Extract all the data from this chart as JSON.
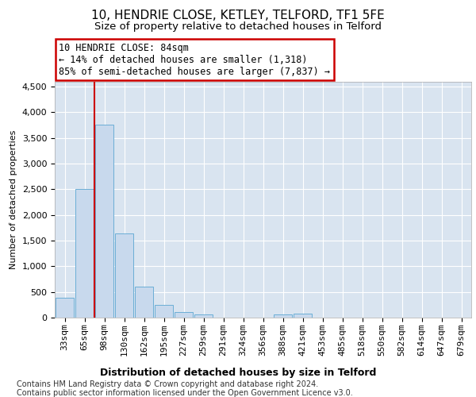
{
  "title1": "10, HENDRIE CLOSE, KETLEY, TELFORD, TF1 5FE",
  "title2": "Size of property relative to detached houses in Telford",
  "xlabel": "Distribution of detached houses by size in Telford",
  "ylabel": "Number of detached properties",
  "categories": [
    "33sqm",
    "65sqm",
    "98sqm",
    "130sqm",
    "162sqm",
    "195sqm",
    "227sqm",
    "259sqm",
    "291sqm",
    "324sqm",
    "356sqm",
    "388sqm",
    "421sqm",
    "453sqm",
    "485sqm",
    "518sqm",
    "550sqm",
    "582sqm",
    "614sqm",
    "647sqm",
    "679sqm"
  ],
  "values": [
    380,
    2500,
    3750,
    1640,
    600,
    250,
    110,
    60,
    0,
    0,
    0,
    55,
    70,
    0,
    0,
    0,
    0,
    0,
    0,
    0,
    0
  ],
  "bar_color": "#c8d9ed",
  "bar_edge_color": "#6baed6",
  "annotation_line1": "10 HENDRIE CLOSE: 84sqm",
  "annotation_line2": "← 14% of detached houses are smaller (1,318)",
  "annotation_line3": "85% of semi-detached houses are larger (7,837) →",
  "annotation_box_color": "#ffffff",
  "annotation_box_edge": "#cc0000",
  "vline_color": "#cc0000",
  "vline_x": 1.5,
  "ylim": [
    0,
    4600
  ],
  "yticks": [
    0,
    500,
    1000,
    1500,
    2000,
    2500,
    3000,
    3500,
    4000,
    4500
  ],
  "footnote1": "Contains HM Land Registry data © Crown copyright and database right 2024.",
  "footnote2": "Contains public sector information licensed under the Open Government Licence v3.0.",
  "plot_bg_color": "#d9e4f0",
  "title1_fontsize": 11,
  "title2_fontsize": 9.5,
  "xlabel_fontsize": 9,
  "ylabel_fontsize": 8,
  "tick_fontsize": 8,
  "annotation_fontsize": 8.5,
  "footnote_fontsize": 7
}
